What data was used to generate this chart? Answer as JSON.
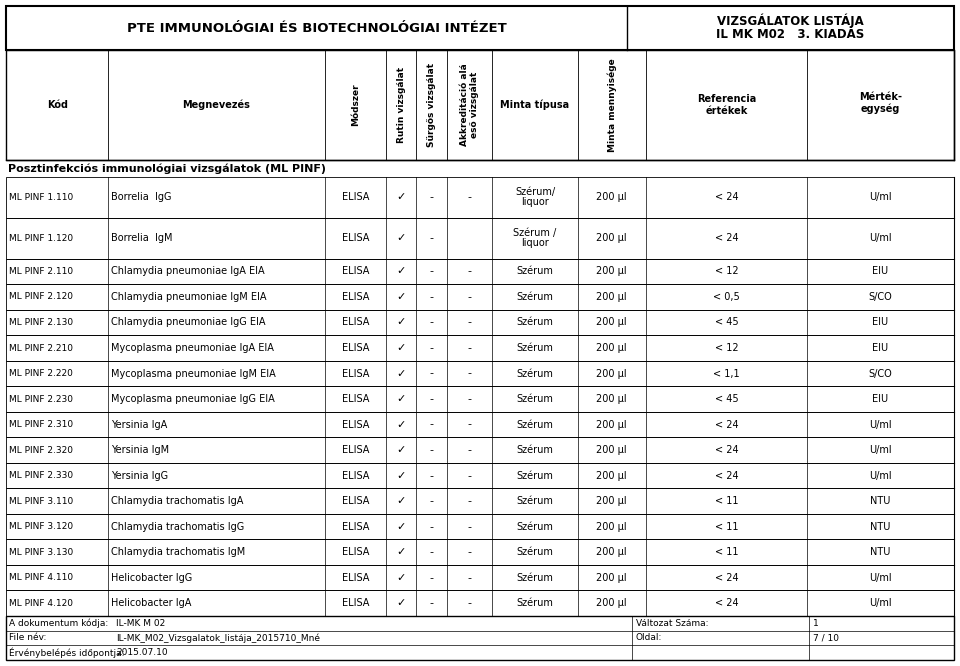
{
  "header_left": "PTE IMMUNOLÓGIAI ÉS BIOTECHNOLÓGIAI INTÉZET",
  "header_right_line1": "VIZSGÁLATOK LISTÁJA",
  "header_right_line2": "IL MK M02   3. KIADÁS",
  "section_title": "Posztinfekciós immunológiai vizsgálatok (ML PINF)",
  "col_headers": [
    "Kód",
    "Megnevezés",
    "Módszer",
    "Rutin vizsgálat",
    "Sürgős vizsgálat",
    "Akkreditáció alá\neső vizsgálat",
    "Minta típusa",
    "Minta mennyisége",
    "Referencia\nértékek",
    "Mérték-\negység"
  ],
  "rows": [
    [
      "ML PINF 1.110",
      "Borrelia  IgG",
      "ELISA",
      "✓",
      "-",
      "-",
      "Szérum/\nliquor",
      "200 µl",
      "< 24",
      "U/ml"
    ],
    [
      "ML PINF 1.120",
      "Borrelia  IgM",
      "ELISA",
      "✓",
      "-",
      "",
      "Szérum /\nliquor",
      "200 µl",
      "< 24",
      "U/ml"
    ],
    [
      "ML PINF 2.110",
      "Chlamydia pneumoniae IgA EIA",
      "ELISA",
      "✓",
      "-",
      "-",
      "Szérum",
      "200 µl",
      "< 12",
      "EIU"
    ],
    [
      "ML PINF 2.120",
      "Chlamydia pneumoniae IgM EIA",
      "ELISA",
      "✓",
      "-",
      "-",
      "Szérum",
      "200 µl",
      "< 0,5",
      "S/CO"
    ],
    [
      "ML PINF 2.130",
      "Chlamydia pneumoniae IgG EIA",
      "ELISA",
      "✓",
      "-",
      "-",
      "Szérum",
      "200 µl",
      "< 45",
      "EIU"
    ],
    [
      "ML PINF 2.210",
      "Mycoplasma pneumoniae IgA EIA",
      "ELISA",
      "✓",
      "-",
      "-",
      "Szérum",
      "200 µl",
      "< 12",
      "EIU"
    ],
    [
      "ML PINF 2.220",
      "Mycoplasma pneumoniae IgM EIA",
      "ELISA",
      "✓",
      "-",
      "-",
      "Szérum",
      "200 µl",
      "< 1,1",
      "S/CO"
    ],
    [
      "ML PINF 2.230",
      "Mycoplasma pneumoniae IgG EIA",
      "ELISA",
      "✓",
      "-",
      "-",
      "Szérum",
      "200 µl",
      "< 45",
      "EIU"
    ],
    [
      "ML PINF 2.310",
      "Yersinia IgA",
      "ELISA",
      "✓",
      "-",
      "-",
      "Szérum",
      "200 µl",
      "< 24",
      "U/ml"
    ],
    [
      "ML PINF 2.320",
      "Yersinia IgM",
      "ELISA",
      "✓",
      "-",
      "-",
      "Szérum",
      "200 µl",
      "< 24",
      "U/ml"
    ],
    [
      "ML PINF 2.330",
      "Yersinia IgG",
      "ELISA",
      "✓",
      "-",
      "-",
      "Szérum",
      "200 µl",
      "< 24",
      "U/ml"
    ],
    [
      "ML PINF 3.110",
      "Chlamydia trachomatis IgA",
      "ELISA",
      "✓",
      "-",
      "-",
      "Szérum",
      "200 µl",
      "< 11",
      "NTU"
    ],
    [
      "ML PINF 3.120",
      "Chlamydia trachomatis IgG",
      "ELISA",
      "✓",
      "-",
      "-",
      "Szérum",
      "200 µl",
      "< 11",
      "NTU"
    ],
    [
      "ML PINF 3.130",
      "Chlamydia trachomatis IgM",
      "ELISA",
      "✓",
      "-",
      "-",
      "Szérum",
      "200 µl",
      "< 11",
      "NTU"
    ],
    [
      "ML PINF 4.110",
      "Helicobacter IgG",
      "ELISA",
      "✓",
      "-",
      "-",
      "Szérum",
      "200 µl",
      "< 24",
      "U/ml"
    ],
    [
      "ML PINF 4.120",
      "Helicobacter IgA",
      "ELISA",
      "✓",
      "-",
      "-",
      "Szérum",
      "200 µl",
      "< 24",
      "U/ml"
    ]
  ],
  "footer_left": [
    [
      "A dokumentum kódja:",
      "IL-MK M 02"
    ],
    [
      "File név:",
      "IL-MK_M02_Vizsgalatok_listája_2015710_Mné"
    ],
    [
      "Érvénybelépés időpontja:",
      "2015.07.10"
    ]
  ],
  "footer_right": [
    [
      "Változat Száma:",
      "1"
    ],
    [
      "Oldal:",
      "7 / 10"
    ]
  ]
}
